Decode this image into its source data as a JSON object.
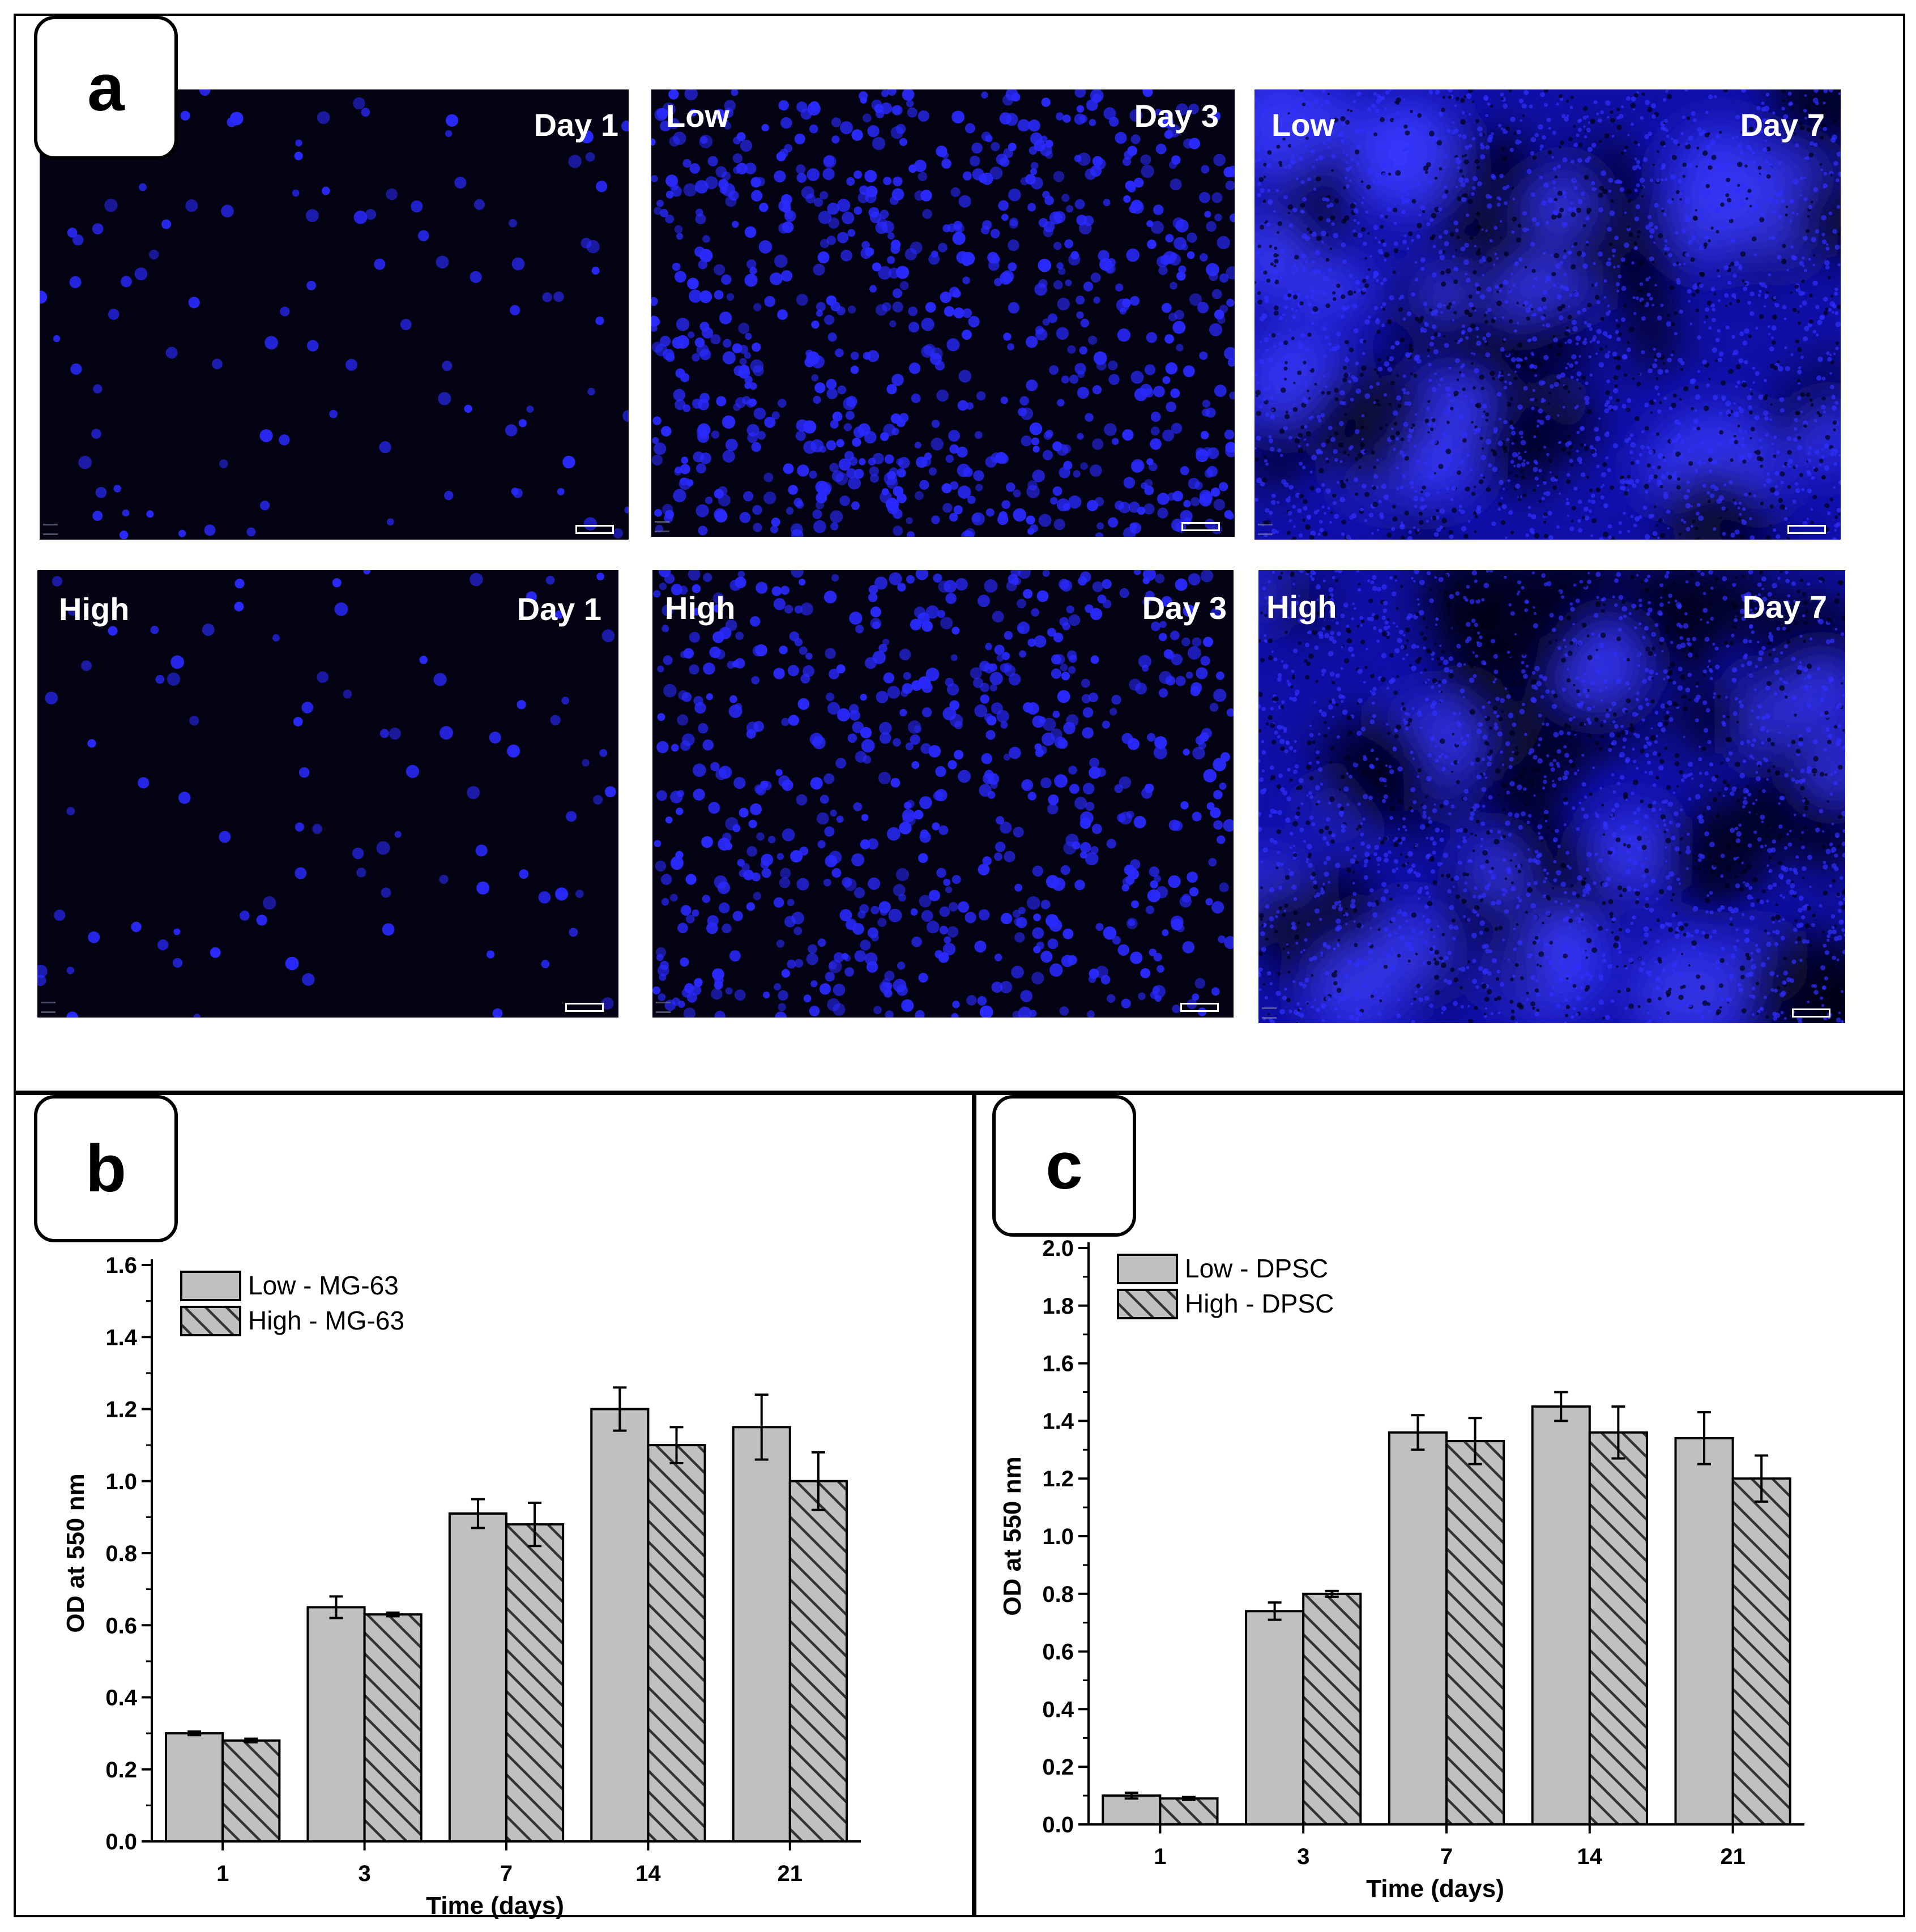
{
  "panels": {
    "a": {
      "letter": "a",
      "images": [
        {
          "corner_label": "",
          "day_label": "Day 1",
          "density": 0.03,
          "confluent": false,
          "glow": 0.0
        },
        {
          "corner_label": "Low",
          "day_label": "Day 3",
          "density": 0.55,
          "confluent": false,
          "glow": 0.0
        },
        {
          "corner_label": "Low",
          "day_label": "Day 7",
          "density": 1.0,
          "confluent": true,
          "glow": 0.75
        },
        {
          "corner_label": "High",
          "day_label": "Day 1",
          "density": 0.02,
          "confluent": false,
          "glow": 0.0
        },
        {
          "corner_label": "High",
          "day_label": "Day 3",
          "density": 0.45,
          "confluent": false,
          "glow": 0.0
        },
        {
          "corner_label": "High",
          "day_label": "Day 7",
          "density": 1.0,
          "confluent": true,
          "glow": 0.85
        }
      ]
    },
    "b": {
      "letter": "b"
    },
    "c": {
      "letter": "c"
    }
  },
  "colors": {
    "nuclei": "#2a2aff",
    "background": "#030314",
    "bar_fill": "#c0c0c0",
    "hatch": "#333333"
  },
  "chart_data": [
    {
      "panel": "b",
      "type": "bar",
      "categories": [
        "1",
        "3",
        "7",
        "14",
        "21"
      ],
      "series": [
        {
          "name": "Low - MG-63",
          "values": [
            0.3,
            0.65,
            0.91,
            1.2,
            1.15
          ],
          "errors": [
            0.005,
            0.03,
            0.04,
            0.06,
            0.09
          ],
          "pattern": "solid"
        },
        {
          "name": "High - MG-63",
          "values": [
            0.28,
            0.63,
            0.88,
            1.1,
            1.0
          ],
          "errors": [
            0.005,
            0.005,
            0.06,
            0.05,
            0.08
          ],
          "pattern": "hatched"
        }
      ],
      "yticks": [
        "0.0",
        "0.2",
        "0.4",
        "0.6",
        "0.8",
        "1.0",
        "1.2",
        "1.4",
        "1.6"
      ],
      "ylim": [
        0,
        1.6
      ],
      "xlabel": "Time (days)",
      "ylabel": "OD at 550 nm",
      "legend": "top-left"
    },
    {
      "panel": "c",
      "type": "bar",
      "categories": [
        "1",
        "3",
        "7",
        "14",
        "21"
      ],
      "series": [
        {
          "name": "Low - DPSC",
          "values": [
            0.1,
            0.74,
            1.36,
            1.45,
            1.34
          ],
          "errors": [
            0.01,
            0.03,
            0.06,
            0.05,
            0.09
          ],
          "pattern": "solid"
        },
        {
          "name": "High - DPSC",
          "values": [
            0.09,
            0.8,
            1.33,
            1.36,
            1.2
          ],
          "errors": [
            0.005,
            0.01,
            0.08,
            0.09,
            0.08
          ],
          "pattern": "hatched"
        }
      ],
      "yticks": [
        "0.0",
        "0.2",
        "0.4",
        "0.6",
        "0.8",
        "1.0",
        "1.2",
        "1.4",
        "1.6",
        "1.8",
        "2.0"
      ],
      "ylim": [
        0,
        2.0
      ],
      "xlabel": "Time (days)",
      "ylabel": "OD at 550 nm",
      "legend": "top-left"
    }
  ]
}
